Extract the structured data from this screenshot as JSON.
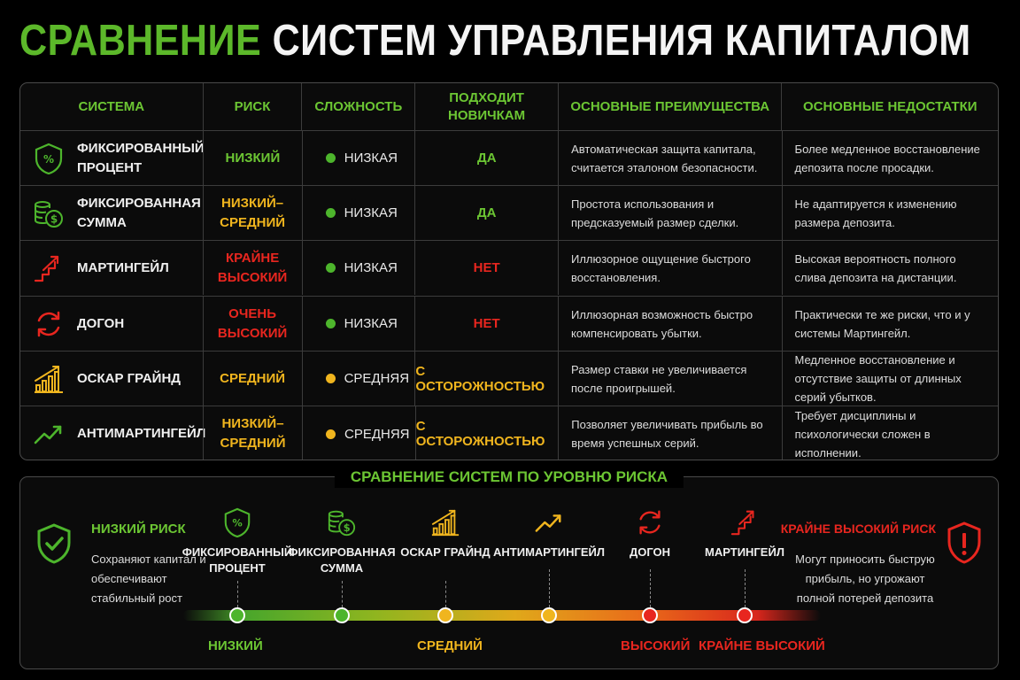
{
  "title": {
    "part1": "СРАВНЕНИЕ",
    "part2": "СИСТЕМ УПРАВЛЕНИЯ КАПИТАЛОМ"
  },
  "table": {
    "headers": [
      "СИСТЕМА",
      "РИСК",
      "СЛОЖНОСТЬ",
      "ПОДХОДИТ НОВИЧКАМ",
      "ОСНОВНЫЕ ПРЕИМУЩЕСТВА",
      "ОСНОВНЫЕ НЕДОСТАТКИ"
    ],
    "rows": [
      {
        "icon": "shield-percent-icon",
        "name": "ФИКСИРОВАННЫЙ ПРОЦЕНТ",
        "risk": "НИЗКИЙ",
        "risk_color": "#6cc633",
        "complexity": "НИЗКАЯ",
        "complexity_color": "#4db52c",
        "novice": "ДА",
        "novice_color": "#6cc633",
        "pros": "Автоматическая защита капитала, считается эталоном безопасности.",
        "cons": "Более медленное восстановление депозита после просадки."
      },
      {
        "icon": "coins-dollar-icon",
        "name": "ФИКСИРОВАННАЯ СУММА",
        "risk": "НИЗКИЙ–СРЕДНИЙ",
        "risk_color": "#f0b51e",
        "complexity": "НИЗКАЯ",
        "complexity_color": "#4db52c",
        "novice": "ДА",
        "novice_color": "#6cc633",
        "pros": "Простота использования и предсказуемый размер сделки.",
        "cons": "Не адаптируется к изменению размера депозита."
      },
      {
        "icon": "stairs-arrow-up-icon",
        "name": "МАРТИНГЕЙЛ",
        "risk": "КРАЙНЕ ВЫСОКИЙ",
        "risk_color": "#e8261f",
        "complexity": "НИЗКАЯ",
        "complexity_color": "#4db52c",
        "novice": "НЕТ",
        "novice_color": "#e8261f",
        "pros": "Иллюзорное ощущение быстрого восстановления.",
        "cons": "Высокая вероятность полного слива депозита на дистанции."
      },
      {
        "icon": "refresh-cycle-icon",
        "name": "ДОГОН",
        "risk": "ОЧЕНЬ ВЫСОКИЙ",
        "risk_color": "#e8261f",
        "complexity": "НИЗКАЯ",
        "complexity_color": "#4db52c",
        "novice": "НЕТ",
        "novice_color": "#e8261f",
        "pros": "Иллюзорная возможность быстро компенсировать убытки.",
        "cons": "Практически те же риски, что и у системы Мартингейл."
      },
      {
        "icon": "bar-chart-rising-icon",
        "name": "ОСКАР ГРАЙНД",
        "risk": "СРЕДНИЙ",
        "risk_color": "#f0b51e",
        "complexity": "СРЕДНЯЯ",
        "complexity_color": "#f0b51e",
        "novice": "С ОСТОРОЖНОСТЬЮ",
        "novice_color": "#f0b51e",
        "pros": "Размер ставки не увеличивается после проигрышей.",
        "cons": "Медленное восстановление и отсутствие защиты от длинных серий убытков."
      },
      {
        "icon": "trend-up-arrow-icon",
        "name": "АНТИМАРТИНГЕЙЛ",
        "risk": "НИЗКИЙ–СРЕДНИЙ",
        "risk_color": "#f0b51e",
        "complexity": "СРЕДНЯЯ",
        "complexity_color": "#f0b51e",
        "novice": "С ОСТОРОЖНОСТЬЮ",
        "novice_color": "#f0b51e",
        "pros": "Позволяет увеличивать прибыль во время успешных серий.",
        "cons": "Требует дисциплины и психологически сложен в исполнении."
      }
    ]
  },
  "risk_panel": {
    "title": "СРАВНЕНИЕ СИСТЕМ ПО УРОВНЮ РИСКА",
    "low": {
      "label": "НИЗКИЙ РИСК",
      "desc": "Сохраняют капитал и обеспечивают стабильный рост",
      "icon": "shield-check-icon"
    },
    "high": {
      "label": "КРАЙНЕ ВЫСОКИЙ РИСК",
      "desc": "Могут приносить быструю прибыль, но угрожают полной потерей депозита",
      "icon": "shield-alert-icon"
    },
    "systems": [
      {
        "name": "ФИКСИРОВАННЫЙ ПРОЦЕНТ",
        "icon": "shield-percent-icon",
        "color": "#4db52c"
      },
      {
        "name": "ФИКСИРОВАННАЯ СУММА",
        "icon": "coins-dollar-icon",
        "color": "#4db52c"
      },
      {
        "name": "ОСКАР ГРАЙНД",
        "icon": "bar-chart-rising-icon",
        "color": "#f0b51e"
      },
      {
        "name": "АНТИМАРТИНГЕЙЛ",
        "icon": "trend-up-arrow-icon",
        "color": "#f0b51e"
      },
      {
        "name": "ДОГОН",
        "icon": "refresh-cycle-icon",
        "color": "#e8261f"
      },
      {
        "name": "МАРТИНГЕЙЛ",
        "icon": "stairs-arrow-up-icon",
        "color": "#e8261f"
      }
    ],
    "scale": [
      {
        "label": "НИЗКИЙ",
        "color": "#6cc633"
      },
      {
        "label": "СРЕДНИЙ",
        "color": "#f0b51e"
      },
      {
        "label": "ВЫСОКИЙ",
        "color": "#e8261f"
      },
      {
        "label": "КРАЙНЕ ВЫСОКИЙ",
        "color": "#e8261f"
      }
    ]
  }
}
